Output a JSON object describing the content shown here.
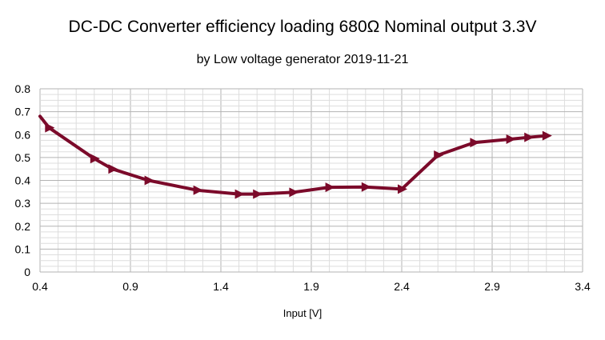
{
  "chart_data": {
    "type": "line",
    "title": "DC-DC Converter efficiency loading 680Ω Nominal output 3.3V",
    "subtitle": "by Low voltage generator 2019-11-21",
    "xlabel": "Input [V]",
    "ylabel": "",
    "xlim": [
      0.4,
      3.4
    ],
    "ylim": [
      0,
      0.8
    ],
    "xticks": [
      "0.4",
      "0.9",
      "1.4",
      "1.9",
      "2.4",
      "2.9",
      "3.4"
    ],
    "yticks": [
      "0",
      "0.1",
      "0.2",
      "0.3",
      "0.4",
      "0.5",
      "0.6",
      "0.7",
      "0.8"
    ],
    "grid": true,
    "legend": "none",
    "series": [
      {
        "color": "#7b0a2a",
        "marker": "triangle-right",
        "x": [
          0.4,
          0.45,
          0.7,
          0.8,
          1.0,
          1.27,
          1.5,
          1.6,
          1.8,
          2.0,
          2.2,
          2.4,
          2.6,
          2.8,
          3.0,
          3.1,
          3.2
        ],
        "y": [
          0.68,
          0.63,
          0.495,
          0.45,
          0.4,
          0.357,
          0.34,
          0.34,
          0.348,
          0.37,
          0.371,
          0.362,
          0.51,
          0.565,
          0.58,
          0.588,
          0.595
        ],
        "markers_at": [
          false,
          true,
          true,
          true,
          true,
          true,
          true,
          true,
          true,
          true,
          true,
          true,
          true,
          true,
          true,
          true,
          true
        ]
      }
    ]
  }
}
